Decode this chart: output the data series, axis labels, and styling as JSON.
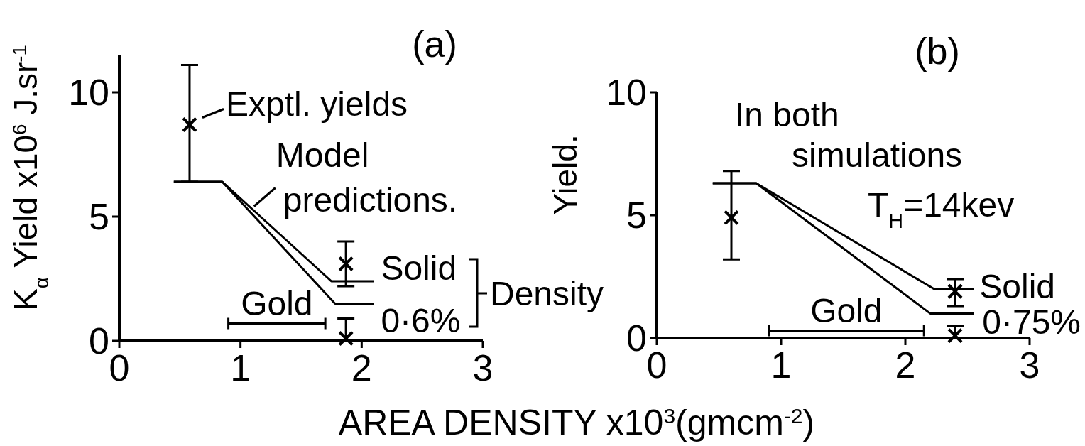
{
  "chart_data": [
    {
      "type": "line",
      "title": "(a)",
      "ylabel": "K$_{α}$ Yield x10$^{6}$ J.sr$^{-1}$",
      "xlabel": "AREA DENSITY x10$^{3}$(gmcm$^{-2}$)",
      "xlim": [
        0,
        3
      ],
      "xticks": [
        0,
        1,
        2,
        3
      ],
      "ylim": [
        0,
        11.5
      ],
      "yticks": [
        0,
        5,
        10
      ],
      "series": [
        {
          "type": "scatter",
          "marker": "cross",
          "x": [
            0.58,
            1.87,
            1.87
          ],
          "values": [
            8.7,
            3.1,
            0.1
          ],
          "errors": [
            [
              6.4,
              11.1
            ],
            [
              2.2,
              4.0
            ],
            [
              0,
              0.9
            ]
          ],
          "color": "#000000"
        },
        {
          "x": [
            0.45,
            0.85,
            1.75,
            2.1
          ],
          "values": [
            6.4,
            6.4,
            2.4,
            2.4
          ],
          "color": "#000000"
        },
        {
          "x": [
            0.45,
            0.85,
            1.78,
            2.1
          ],
          "values": [
            6.4,
            6.4,
            1.5,
            1.5
          ],
          "color": "#000000"
        },
        {
          "name": "Gold",
          "x": [
            0.9,
            1.7
          ],
          "values": [
            0.7,
            0.7
          ],
          "color": "#000000"
        }
      ],
      "annotations": [
        {
          "text": "Exptl. yields",
          "x": 0.58,
          "y": 8.7
        },
        {
          "text": "Model predictions.",
          "x": 1.1,
          "y": 5.3
        },
        {
          "text": "Solid",
          "x": 2.1,
          "y": 2.4
        },
        {
          "text": "0·6%",
          "x": 2.1,
          "y": 1.5
        },
        "Density"
      ]
    },
    {
      "type": "line",
      "title": "(b)",
      "ylabel": "Yield.",
      "xlim": [
        0,
        3
      ],
      "xticks": [
        0,
        1,
        2,
        3
      ],
      "ylim": [
        0,
        10
      ],
      "yticks": [
        0,
        5,
        10
      ],
      "series": [
        {
          "type": "scatter",
          "marker": "cross",
          "x": [
            0.6,
            2.4,
            2.4
          ],
          "values": [
            4.9,
            1.9,
            0.1
          ],
          "errors": [
            [
              3.2,
              6.8
            ],
            [
              1.3,
              2.4
            ],
            [
              0,
              0.5
            ]
          ],
          "color": "#000000"
        },
        {
          "x": [
            0.45,
            0.8,
            2.23,
            2.55
          ],
          "values": [
            6.3,
            6.3,
            2.0,
            2.0
          ],
          "color": "#000000"
        },
        {
          "x": [
            0.45,
            0.8,
            2.2,
            2.55
          ],
          "values": [
            6.3,
            6.3,
            1.0,
            1.0
          ],
          "color": "#000000"
        },
        {
          "name": "Gold",
          "x": [
            0.9,
            2.15
          ],
          "values": [
            0.3,
            0.3
          ],
          "color": "#000000"
        }
      ],
      "annotations": [
        "In both",
        "simulations",
        "T$_{H}$=14kev",
        {
          "text": "Solid",
          "x": 2.55,
          "y": 2.0
        },
        {
          "text": "0·75%",
          "x": 2.55,
          "y": 1.0
        }
      ]
    }
  ]
}
